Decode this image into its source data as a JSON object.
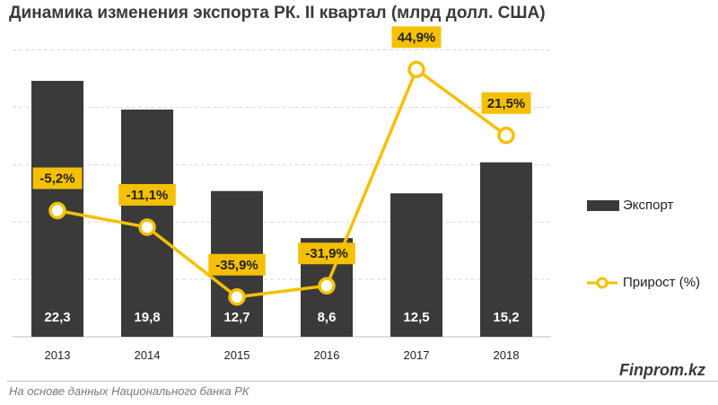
{
  "title": "Динамика изменения экспорта РК. II квартал (млрд долл. США)",
  "chart_data": {
    "type": "bar+line",
    "categories": [
      "2013",
      "2014",
      "2015",
      "2016",
      "2017",
      "2018"
    ],
    "series": [
      {
        "name": "Экспорт",
        "type": "bar",
        "values": [
          22.3,
          19.8,
          12.7,
          8.6,
          12.5,
          15.2
        ],
        "labels": [
          "22,3",
          "19,8",
          "12,7",
          "8,6",
          "12,5",
          "15,2"
        ],
        "color": "#3a3a3a"
      },
      {
        "name": "Прирост (%)",
        "type": "line",
        "values": [
          -5.2,
          -11.1,
          -35.9,
          -31.9,
          44.9,
          21.5
        ],
        "labels": [
          "-5,2%",
          "-11,1%",
          "-35,9%",
          "-31,9%",
          "44,9%",
          "21,5%"
        ],
        "color": "#f5c000"
      }
    ],
    "bar_ylim": [
      0,
      27
    ],
    "line_ylim": [
      -50,
      60
    ],
    "grid": true,
    "legend": "right"
  },
  "legend": {
    "bar_label": "Экспорт",
    "line_label": "Прирост (%)"
  },
  "credit": "Finprom.kz",
  "source": "На основе данных Национального банка РК"
}
